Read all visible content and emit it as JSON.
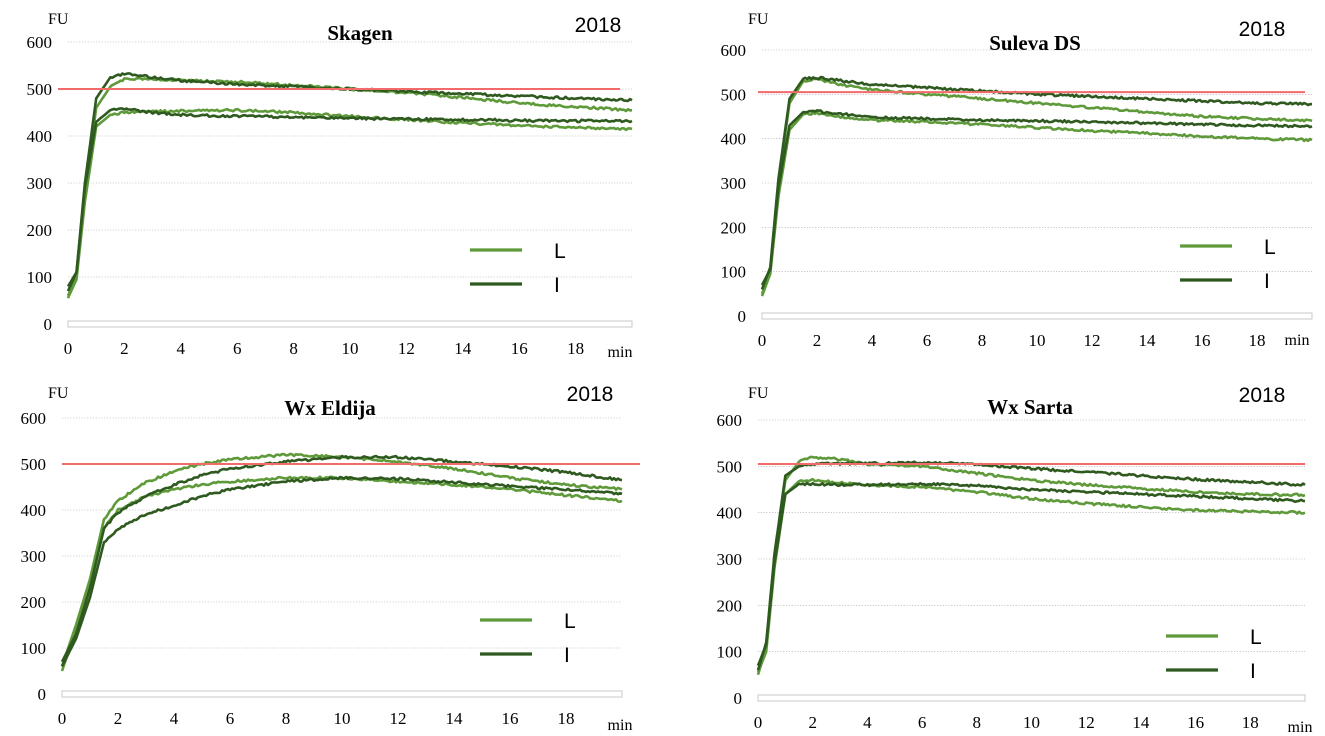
{
  "colors": {
    "series_L": "#5f9a3a",
    "series_I": "#2f5a1f",
    "reference": "#f26a6a",
    "grid": "#a6a6a6",
    "axis": "#c8c8c8"
  },
  "chart_data": [
    {
      "type": "line",
      "title": "Skagen",
      "year": "2018",
      "ylabel": "FU",
      "xlabel": "min",
      "ylim": [
        0,
        600
      ],
      "xlim": [
        0,
        20
      ],
      "xticks": [
        "0",
        "2",
        "4",
        "6",
        "8",
        "10",
        "12",
        "14",
        "16",
        "18"
      ],
      "yticks": [
        "0",
        "100",
        "200",
        "300",
        "400",
        "500",
        "600"
      ],
      "reference_line": 500,
      "legend": [
        {
          "label": "L",
          "series": "L"
        },
        {
          "label": "I",
          "series": "I"
        }
      ],
      "series": [
        {
          "name": "L",
          "x": [
            0,
            0.3,
            0.6,
            1,
            1.5,
            2,
            3,
            4,
            6,
            8,
            10,
            12,
            14,
            16,
            18,
            20
          ],
          "y": [
            60,
            100,
            280,
            460,
            505,
            522,
            520,
            518,
            515,
            508,
            500,
            492,
            482,
            470,
            462,
            455
          ]
        },
        {
          "name": "L",
          "x": [
            0,
            0.3,
            0.6,
            1,
            1.5,
            2,
            3,
            4,
            6,
            8,
            10,
            12,
            14,
            16,
            18,
            20
          ],
          "y": [
            55,
            95,
            260,
            420,
            445,
            450,
            452,
            453,
            455,
            450,
            442,
            435,
            428,
            422,
            418,
            415
          ]
        },
        {
          "name": "I",
          "x": [
            0,
            0.3,
            0.6,
            1,
            1.5,
            2,
            3,
            4,
            6,
            8,
            10,
            12,
            14,
            16,
            18,
            20
          ],
          "y": [
            70,
            110,
            300,
            480,
            525,
            532,
            525,
            518,
            510,
            505,
            500,
            495,
            490,
            485,
            480,
            476
          ]
        },
        {
          "name": "I",
          "x": [
            0,
            0.3,
            0.6,
            1,
            1.5,
            2,
            3,
            4,
            6,
            8,
            10,
            12,
            14,
            16,
            18,
            20
          ],
          "y": [
            80,
            110,
            290,
            430,
            455,
            458,
            450,
            445,
            442,
            440,
            438,
            436,
            435,
            433,
            432,
            432
          ]
        }
      ]
    },
    {
      "type": "line",
      "title": "Suleva DS",
      "year": "2018",
      "ylabel": "FU",
      "xlabel": "min",
      "ylim": [
        0,
        600
      ],
      "xlim": [
        0,
        20
      ],
      "xticks": [
        "0",
        "2",
        "4",
        "6",
        "8",
        "10",
        "12",
        "14",
        "16",
        "18"
      ],
      "yticks": [
        "0",
        "100",
        "200",
        "300",
        "400",
        "500",
        "600"
      ],
      "reference_line": 505,
      "legend": [
        {
          "label": "L",
          "series": "L"
        },
        {
          "label": "I",
          "series": "I"
        }
      ],
      "series": [
        {
          "name": "L",
          "x": [
            0,
            0.3,
            0.6,
            1,
            1.5,
            2,
            3,
            4,
            6,
            8,
            10,
            12,
            14,
            16,
            18,
            20
          ],
          "y": [
            50,
            100,
            300,
            480,
            530,
            535,
            520,
            510,
            500,
            490,
            480,
            470,
            460,
            450,
            445,
            440
          ]
        },
        {
          "name": "L",
          "x": [
            0,
            0.3,
            0.6,
            1,
            1.5,
            2,
            3,
            4,
            6,
            8,
            10,
            12,
            14,
            16,
            18,
            20
          ],
          "y": [
            45,
            95,
            270,
            420,
            455,
            458,
            448,
            442,
            438,
            432,
            425,
            418,
            412,
            405,
            400,
            397
          ]
        },
        {
          "name": "I",
          "x": [
            0,
            0.3,
            0.6,
            1,
            1.5,
            2,
            3,
            4,
            6,
            8,
            10,
            12,
            14,
            16,
            18,
            20
          ],
          "y": [
            60,
            110,
            310,
            490,
            535,
            538,
            530,
            522,
            515,
            508,
            500,
            495,
            490,
            485,
            480,
            478
          ]
        },
        {
          "name": "I",
          "x": [
            0,
            0.3,
            0.6,
            1,
            1.5,
            2,
            3,
            4,
            6,
            8,
            10,
            12,
            14,
            16,
            18,
            20
          ],
          "y": [
            70,
            105,
            290,
            430,
            460,
            462,
            455,
            448,
            445,
            442,
            440,
            438,
            435,
            432,
            430,
            428
          ]
        }
      ]
    },
    {
      "type": "line",
      "title": "Wx Eldija",
      "year": "2018",
      "ylabel": "FU",
      "xlabel": "min",
      "ylim": [
        0,
        600
      ],
      "xlim": [
        0,
        20
      ],
      "xticks": [
        "0",
        "2",
        "4",
        "6",
        "8",
        "10",
        "12",
        "14",
        "16",
        "18"
      ],
      "yticks": [
        "0",
        "100",
        "200",
        "300",
        "400",
        "500",
        "600"
      ],
      "reference_line": 500,
      "legend": [
        {
          "label": "L",
          "series": "L"
        },
        {
          "label": "I",
          "series": "I"
        }
      ],
      "series": [
        {
          "name": "L",
          "x": [
            0,
            0.5,
            1,
            1.5,
            2,
            3,
            4,
            5,
            6,
            8,
            10,
            12,
            14,
            16,
            18,
            20
          ],
          "y": [
            60,
            150,
            250,
            380,
            420,
            460,
            485,
            500,
            510,
            520,
            515,
            505,
            490,
            470,
            455,
            445
          ]
        },
        {
          "name": "L",
          "x": [
            0,
            0.5,
            1,
            1.5,
            2,
            3,
            4,
            5,
            6,
            8,
            10,
            12,
            14,
            16,
            18,
            20
          ],
          "y": [
            50,
            140,
            240,
            360,
            400,
            430,
            445,
            455,
            462,
            470,
            470,
            462,
            455,
            445,
            432,
            420
          ]
        },
        {
          "name": "I",
          "x": [
            0,
            0.5,
            1,
            1.5,
            2,
            3,
            4,
            5,
            6,
            8,
            10,
            12,
            14,
            16,
            18,
            20
          ],
          "y": [
            70,
            130,
            230,
            360,
            395,
            430,
            455,
            475,
            490,
            505,
            515,
            515,
            505,
            495,
            482,
            465
          ]
        },
        {
          "name": "I",
          "x": [
            0,
            0.5,
            1,
            1.5,
            2,
            3,
            4,
            5,
            6,
            8,
            10,
            12,
            14,
            16,
            18,
            20
          ],
          "y": [
            60,
            120,
            210,
            330,
            360,
            390,
            410,
            430,
            445,
            462,
            470,
            468,
            460,
            452,
            445,
            435
          ]
        }
      ]
    },
    {
      "type": "line",
      "title": "Wx Sarta",
      "year": "2018",
      "ylabel": "FU",
      "xlabel": "min",
      "ylim": [
        0,
        600
      ],
      "xlim": [
        0,
        20
      ],
      "xticks": [
        "0",
        "2",
        "4",
        "6",
        "8",
        "10",
        "12",
        "14",
        "16",
        "18"
      ],
      "yticks": [
        "0",
        "100",
        "200",
        "300",
        "400",
        "500",
        "600"
      ],
      "reference_line": 505,
      "legend": [
        {
          "label": "L",
          "series": "L"
        },
        {
          "label": "I",
          "series": "I"
        }
      ],
      "series": [
        {
          "name": "L",
          "x": [
            0,
            0.3,
            0.6,
            1,
            1.5,
            2,
            3,
            4,
            6,
            8,
            10,
            12,
            14,
            16,
            18,
            20
          ],
          "y": [
            50,
            110,
            300,
            470,
            510,
            520,
            515,
            505,
            500,
            485,
            470,
            460,
            452,
            445,
            440,
            438
          ]
        },
        {
          "name": "L",
          "x": [
            0,
            0.3,
            0.6,
            1,
            1.5,
            2,
            3,
            4,
            6,
            8,
            10,
            12,
            14,
            16,
            18,
            20
          ],
          "y": [
            55,
            100,
            280,
            440,
            468,
            470,
            465,
            460,
            455,
            445,
            430,
            420,
            412,
            405,
            402,
            400
          ]
        },
        {
          "name": "I",
          "x": [
            0,
            0.3,
            0.6,
            1,
            1.5,
            2,
            3,
            4,
            6,
            8,
            10,
            12,
            14,
            16,
            18,
            20
          ],
          "y": [
            60,
            120,
            310,
            480,
            500,
            505,
            506,
            506,
            508,
            505,
            495,
            488,
            480,
            472,
            466,
            460
          ]
        },
        {
          "name": "I",
          "x": [
            0,
            0.3,
            0.6,
            1,
            1.5,
            2,
            3,
            4,
            6,
            8,
            10,
            12,
            14,
            16,
            18,
            20
          ],
          "y": [
            70,
            115,
            290,
            440,
            462,
            462,
            460,
            460,
            462,
            458,
            450,
            445,
            440,
            435,
            430,
            425
          ]
        }
      ]
    }
  ]
}
